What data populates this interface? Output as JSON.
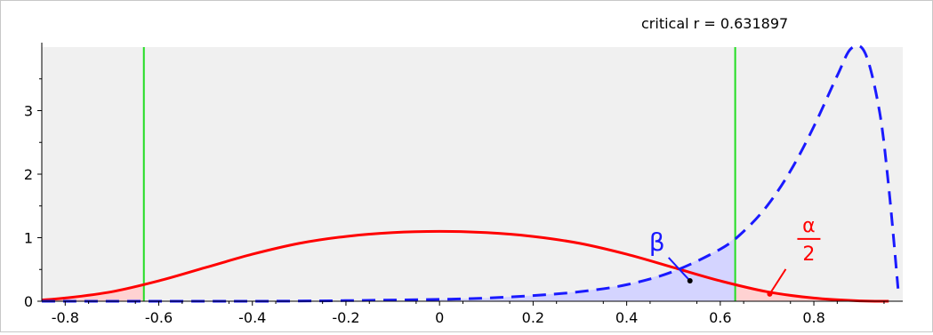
{
  "chart_data": {
    "type": "line",
    "title": "",
    "xlabel": "",
    "ylabel": "",
    "xlim": [
      -0.85,
      0.99
    ],
    "ylim": [
      0,
      4
    ],
    "x_ticks": [
      "-0.8",
      "-0.6",
      "-0.4",
      "-0.2",
      "0",
      "0.2",
      "0.4",
      "0.6",
      "0.8"
    ],
    "y_ticks": [
      "0",
      "1",
      "2",
      "3"
    ],
    "grid": false,
    "critical_label": "critical r = 0.631897",
    "critical_r": 0.631897,
    "critical_lines": [
      -0.631897,
      0.631897
    ],
    "series": [
      {
        "style": "solid",
        "color": "#ff0000",
        "x": [
          -0.85,
          -0.8,
          -0.7,
          -0.6,
          -0.5,
          -0.4,
          -0.3,
          -0.2,
          -0.1,
          0.0,
          0.1,
          0.2,
          0.3,
          0.4,
          0.5,
          0.6,
          0.7,
          0.8,
          0.9,
          0.96
        ],
        "y": [
          0.02,
          0.05,
          0.15,
          0.32,
          0.53,
          0.74,
          0.91,
          1.02,
          1.08,
          1.1,
          1.08,
          1.02,
          0.91,
          0.74,
          0.53,
          0.32,
          0.15,
          0.05,
          0.005,
          0.0
        ]
      },
      {
        "style": "dashed",
        "color": "#1a1aff",
        "x": [
          -0.85,
          -0.4,
          -0.2,
          0.0,
          0.1,
          0.2,
          0.3,
          0.4,
          0.5,
          0.6,
          0.65,
          0.7,
          0.75,
          0.8,
          0.85,
          0.88,
          0.91,
          0.94,
          0.96,
          0.98
        ],
        "y": [
          0.0,
          0.0,
          0.01,
          0.03,
          0.05,
          0.09,
          0.15,
          0.26,
          0.47,
          0.82,
          1.1,
          1.5,
          2.05,
          2.75,
          3.55,
          3.98,
          3.9,
          3.0,
          1.8,
          0.2
        ]
      }
    ],
    "annotations": [
      {
        "text": "β",
        "color": "#1a1aff",
        "x": 0.52,
        "y": 0.35
      },
      {
        "text_num": "α",
        "text_den": "2",
        "color": "#ff0000",
        "x": 0.7,
        "y": 0.03
      }
    ],
    "colors": {
      "plot_background": "#f0f0f0",
      "critical_line": "#22dd22",
      "alpha_fill": "#ffd2d2",
      "beta_fill": "#d4d4ff"
    }
  }
}
